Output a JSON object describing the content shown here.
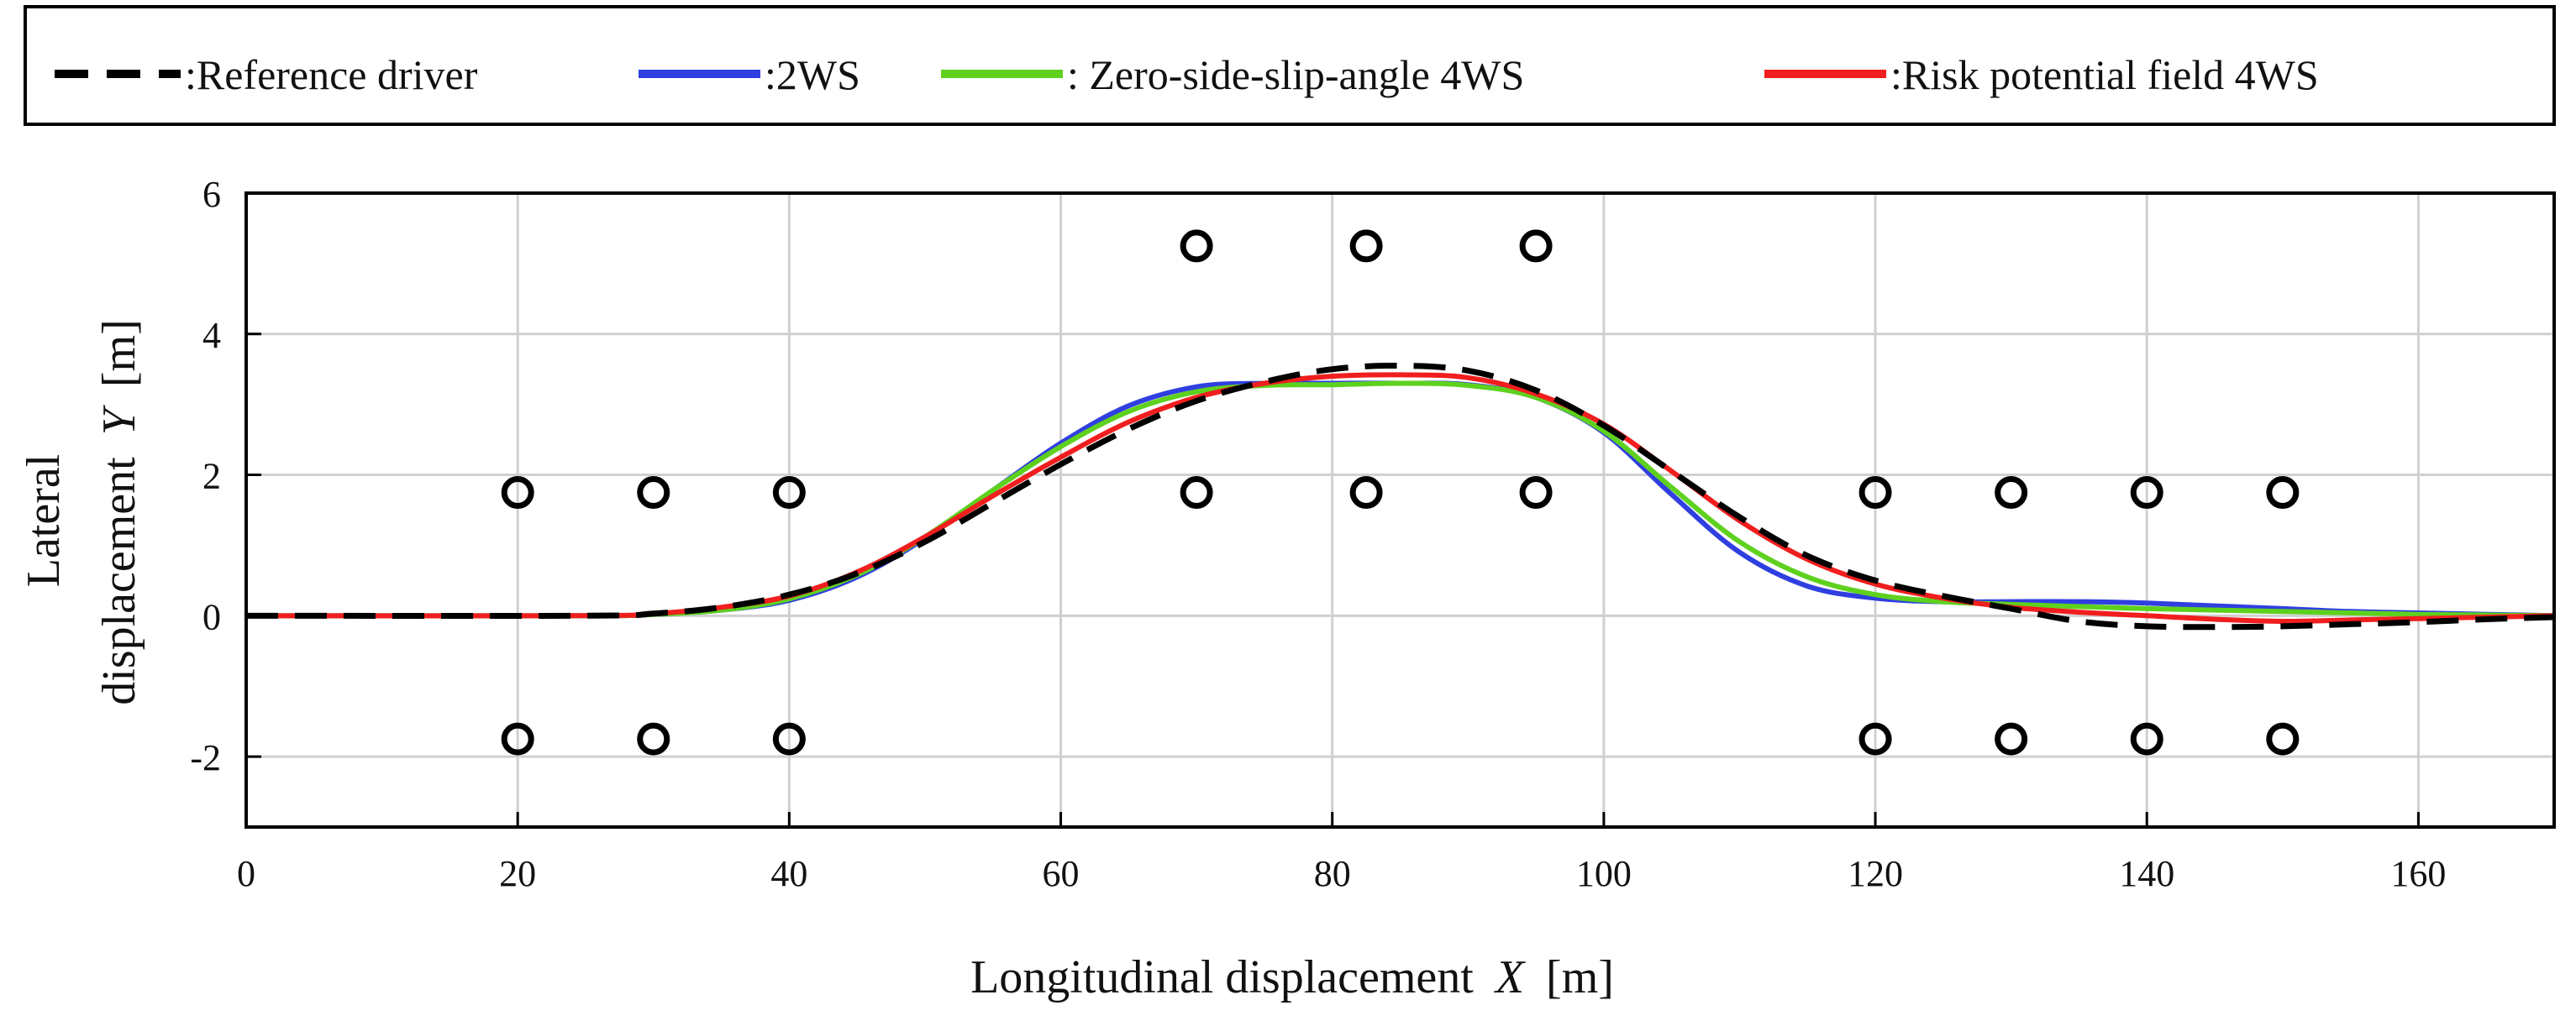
{
  "chart_data": {
    "type": "line",
    "xlabel_main": "Longitudinal displacement",
    "xlabel_var": "X",
    "xlabel_unit": "[m]",
    "ylabel_line1": "Lateral",
    "ylabel_line2_main": "displacement",
    "ylabel_var": "Y",
    "ylabel_unit": "[m]",
    "xlim": [
      0,
      170
    ],
    "ylim": [
      -3,
      6
    ],
    "xticks": [
      0,
      20,
      40,
      60,
      80,
      100,
      120,
      140,
      160
    ],
    "yticks": [
      -2,
      0,
      2,
      4,
      6
    ],
    "xtick_labels": [
      "0",
      "20",
      "40",
      "60",
      "80",
      "100",
      "120",
      "140",
      "160"
    ],
    "ytick_labels": [
      "-2",
      "0",
      "2",
      "4",
      "6"
    ],
    "grid": true,
    "legend_position": "top",
    "series": [
      {
        "name": ":Reference driver",
        "color": "#000000",
        "dashed": true,
        "x": [
          0,
          25,
          30,
          35,
          40,
          45,
          50,
          55,
          60,
          65,
          70,
          75,
          80,
          85,
          90,
          95,
          100,
          105,
          110,
          115,
          120,
          125,
          130,
          135,
          140,
          145,
          150,
          155,
          160,
          165,
          170
        ],
        "y": [
          0,
          0,
          0.03,
          0.12,
          0.3,
          0.6,
          1.05,
          1.6,
          2.15,
          2.65,
          3.05,
          3.32,
          3.5,
          3.55,
          3.48,
          3.2,
          2.7,
          2.05,
          1.4,
          0.85,
          0.5,
          0.28,
          0.1,
          -0.08,
          -0.15,
          -0.16,
          -0.15,
          -0.12,
          -0.09,
          -0.05,
          -0.02
        ]
      },
      {
        "name": ":2WS",
        "color": "#2f3fe0",
        "dashed": false,
        "x": [
          0,
          25,
          30,
          35,
          40,
          45,
          50,
          55,
          60,
          65,
          70,
          75,
          80,
          85,
          90,
          95,
          100,
          105,
          110,
          115,
          120,
          125,
          130,
          135,
          140,
          145,
          150,
          155,
          160,
          165,
          170
        ],
        "y": [
          0,
          0,
          0.02,
          0.08,
          0.22,
          0.55,
          1.1,
          1.78,
          2.45,
          2.98,
          3.25,
          3.3,
          3.3,
          3.3,
          3.28,
          3.1,
          2.6,
          1.72,
          0.9,
          0.42,
          0.25,
          0.2,
          0.2,
          0.2,
          0.18,
          0.14,
          0.1,
          0.06,
          0.04,
          0.02,
          0
        ]
      },
      {
        "name": ": Zero-side-slip-angle 4WS",
        "color": "#5ed11e",
        "dashed": false,
        "x": [
          0,
          25,
          30,
          35,
          40,
          45,
          50,
          55,
          60,
          65,
          70,
          75,
          80,
          85,
          90,
          95,
          100,
          105,
          110,
          115,
          120,
          125,
          130,
          135,
          140,
          145,
          150,
          155,
          160,
          165,
          170
        ],
        "y": [
          0,
          0,
          0.02,
          0.08,
          0.24,
          0.58,
          1.12,
          1.78,
          2.4,
          2.9,
          3.18,
          3.27,
          3.28,
          3.3,
          3.27,
          3.1,
          2.62,
          1.82,
          1.05,
          0.55,
          0.3,
          0.2,
          0.16,
          0.13,
          0.1,
          0.08,
          0.06,
          0.04,
          0.02,
          0.01,
          0
        ]
      },
      {
        "name": ":Risk potential field 4WS",
        "color": "#f01e1e",
        "dashed": false,
        "x": [
          0,
          25,
          30,
          35,
          40,
          45,
          50,
          55,
          60,
          65,
          70,
          75,
          80,
          85,
          90,
          95,
          100,
          105,
          110,
          115,
          120,
          125,
          130,
          135,
          140,
          145,
          150,
          155,
          160,
          165,
          170
        ],
        "y": [
          0,
          0,
          0.03,
          0.12,
          0.28,
          0.62,
          1.12,
          1.7,
          2.25,
          2.75,
          3.1,
          3.3,
          3.4,
          3.42,
          3.38,
          3.15,
          2.72,
          2.05,
          1.35,
          0.8,
          0.45,
          0.25,
          0.12,
          0.05,
          0.0,
          -0.05,
          -0.08,
          -0.06,
          -0.04,
          -0.02,
          0
        ]
      }
    ],
    "obstacles": {
      "x": [
        20,
        30,
        40,
        70,
        82.5,
        95,
        120,
        130,
        140,
        150,
        20,
        30,
        40,
        120,
        130,
        140,
        150,
        70,
        82.5,
        95
      ],
      "y": [
        1.75,
        1.75,
        1.75,
        1.75,
        1.75,
        1.75,
        1.75,
        1.75,
        1.75,
        1.75,
        -1.75,
        -1.75,
        -1.75,
        -1.75,
        -1.75,
        -1.75,
        -1.75,
        5.25,
        5.25,
        5.25
      ]
    }
  }
}
